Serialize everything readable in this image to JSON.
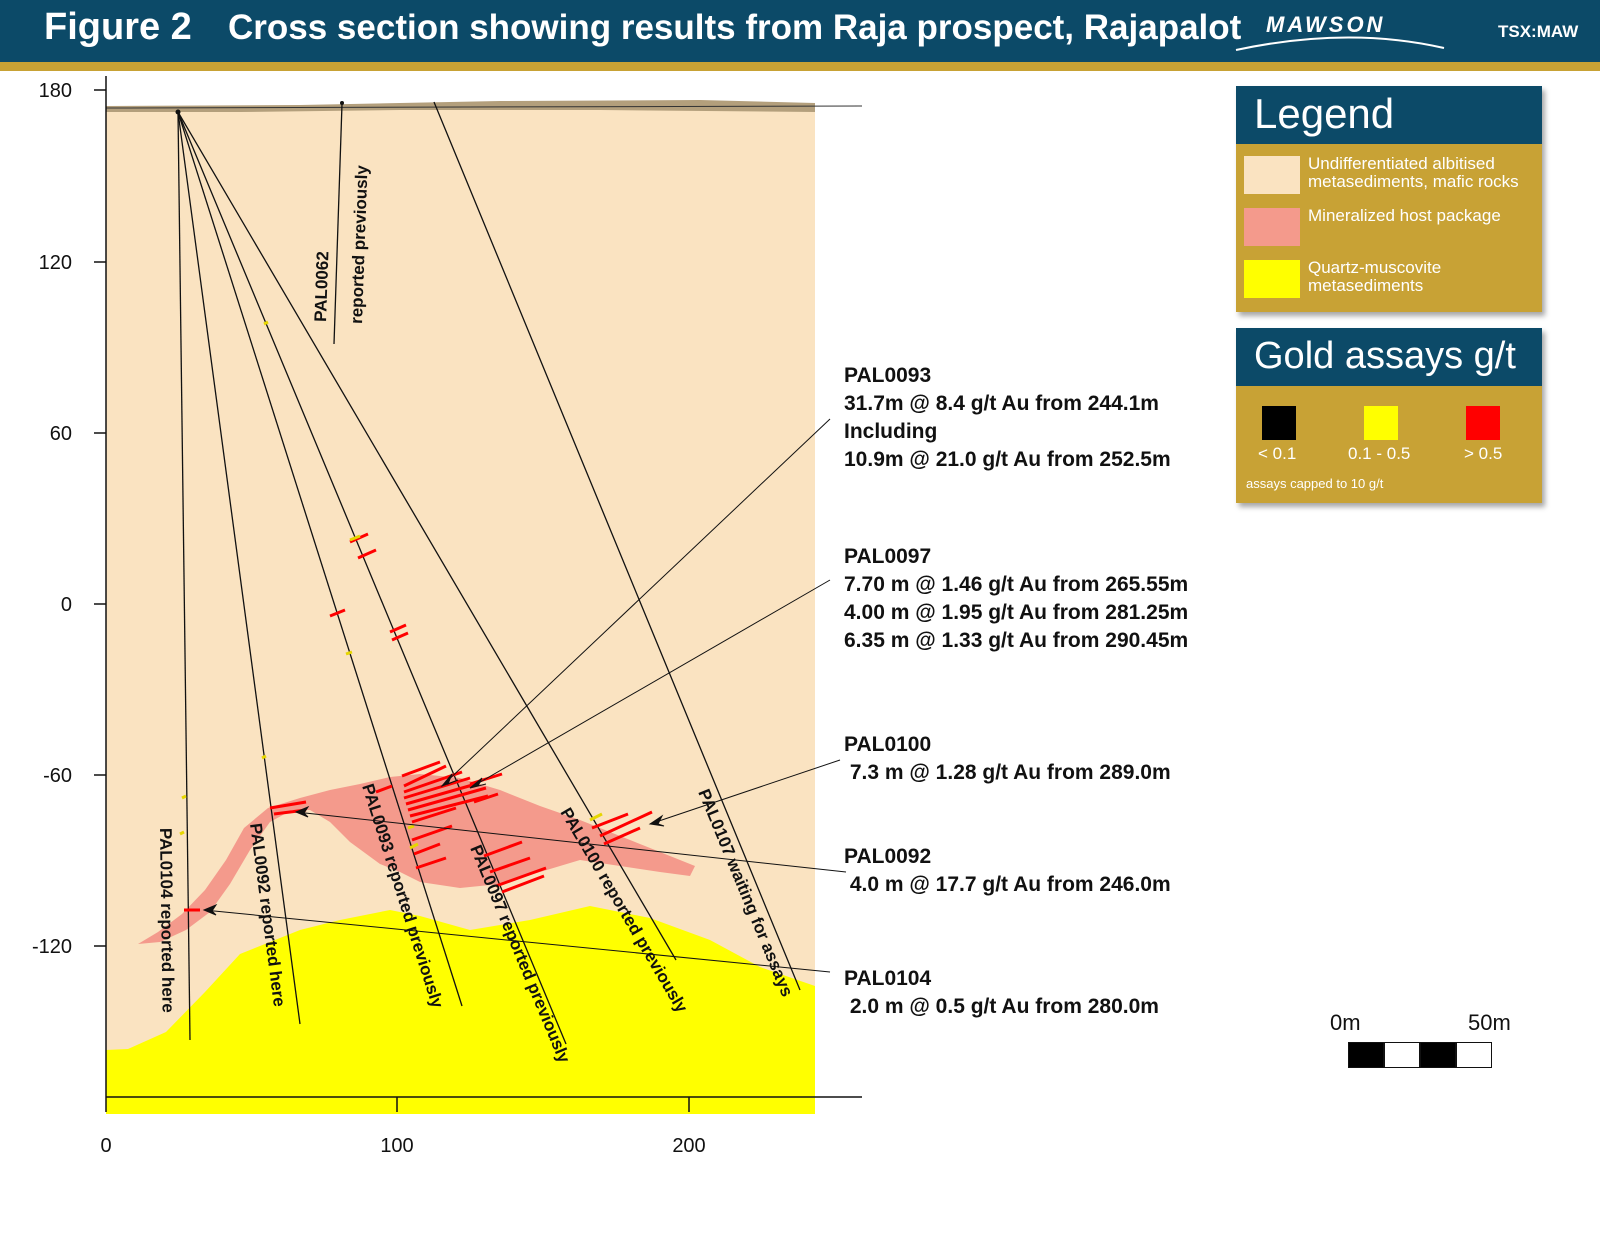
{
  "header": {
    "figure_label": "Figure 2",
    "title": "Cross section showing results from Raja prospect, Rajapalot",
    "logo_text": "MAWSON",
    "ticker": "TSX:MAW"
  },
  "colors": {
    "header_bg": "#0c4a68",
    "accent_gold": "#c8a235",
    "host_rock": "#fae3c1",
    "mineralized_host": "#f49a8c",
    "quartz_muscovite": "#ffff00",
    "assay_low": "#000000",
    "assay_mid": "#ffff00",
    "assay_high": "#ff0000"
  },
  "axes": {
    "y_ticks": [
      "180",
      "120",
      "60",
      "0",
      "-60",
      "-120"
    ],
    "x_ticks": [
      "0",
      "100",
      "200"
    ]
  },
  "drillholes": [
    {
      "id": "PAL0104",
      "label": "PAL0104 reported here"
    },
    {
      "id": "PAL0092",
      "label": "PAL0092 reported here"
    },
    {
      "id": "PAL0093",
      "label": "PAL0093 reported previously"
    },
    {
      "id": "PAL0097",
      "label": "PAL0097 reported previously"
    },
    {
      "id": "PAL0100",
      "label": "PAL0100 reported previously"
    },
    {
      "id": "PAL0107",
      "label": "PAL0107 waiting for assays"
    },
    {
      "id": "PAL0062",
      "label": "PAL0062",
      "label2": "reported previously"
    }
  ],
  "annotations": [
    {
      "hole": "PAL0093",
      "lines": [
        "31.7m @ 8.4 g/t Au from 244.1m",
        "Including",
        "10.9m @ 21.0 g/t Au from 252.5m"
      ]
    },
    {
      "hole": "PAL0097",
      "lines": [
        "7.70 m @ 1.46 g/t Au from 265.55m",
        "4.00 m @ 1.95 g/t Au from 281.25m",
        "6.35 m @ 1.33 g/t Au from 290.45m"
      ]
    },
    {
      "hole": "PAL0100",
      "lines": [
        " 7.3 m @ 1.28 g/t Au from 289.0m"
      ]
    },
    {
      "hole": "PAL0092",
      "lines": [
        " 4.0 m @ 17.7 g/t Au from 246.0m"
      ]
    },
    {
      "hole": "PAL0104",
      "lines": [
        " 2.0 m @ 0.5 g/t Au from 280.0m"
      ]
    }
  ],
  "legend": {
    "title": "Legend",
    "items": [
      {
        "label": "Undifferentiated albitised metasediments, mafic rocks",
        "color": "#fae3c1"
      },
      {
        "label": "Mineralized host package",
        "color": "#f49a8c"
      },
      {
        "label": "Quartz-muscovite metasediments",
        "color": "#ffff00"
      }
    ]
  },
  "gold_assays": {
    "title": "Gold assays g/t",
    "classes": [
      {
        "label": "< 0.1",
        "color": "#000000"
      },
      {
        "label": "0.1 - 0.5",
        "color": "#ffff00"
      },
      {
        "label": "> 0.5",
        "color": "#ff0000"
      }
    ],
    "note": "assays capped to 10 g/t"
  },
  "scale_bar": {
    "start_label": "0m",
    "end_label": "50m"
  }
}
